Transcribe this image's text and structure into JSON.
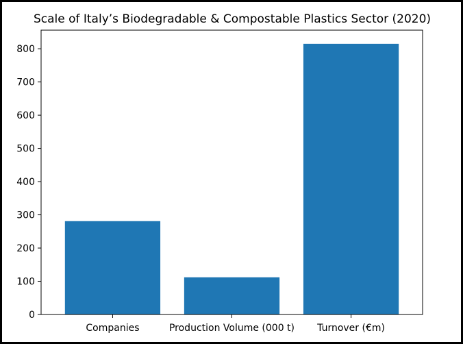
{
  "chart_data": {
    "type": "bar",
    "title": "Scale of Italy’s Biodegradable & Compostable Plastics Sector (2020)",
    "xlabel": "",
    "ylabel": "",
    "categories": [
      "Companies",
      "Production Volume (000 t)",
      "Turnover (€m)"
    ],
    "values": [
      281,
      112,
      815
    ],
    "ylim": [
      0,
      856
    ],
    "yticks": [
      0,
      100,
      200,
      300,
      400,
      500,
      600,
      700,
      800
    ],
    "bar_color": "#1f77b4",
    "grid": false,
    "legend": "none"
  }
}
